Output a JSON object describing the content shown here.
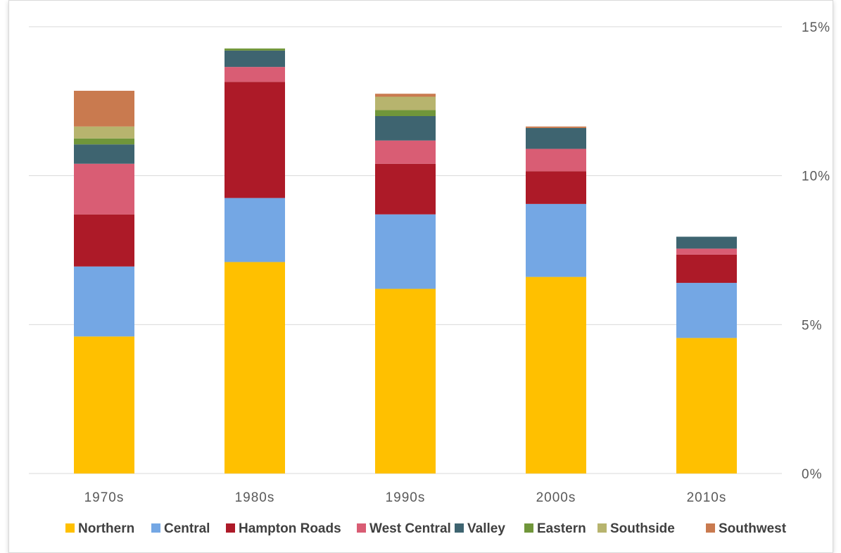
{
  "chart_data": {
    "type": "bar",
    "stacked": true,
    "title": "",
    "xlabel": "",
    "ylabel": "",
    "ylim": [
      0,
      15
    ],
    "y_axis_side": "right",
    "y_tick_labels": [
      "0%",
      "5%",
      "10%",
      "15%"
    ],
    "y_ticks": [
      0,
      5,
      10,
      15
    ],
    "grid": true,
    "legend_position": "bottom",
    "categories": [
      "1970s",
      "1980s",
      "1990s",
      "2000s",
      "2010s"
    ],
    "series": [
      {
        "name": "Northern",
        "color": "#ffc000",
        "values": [
          4.6,
          7.1,
          6.2,
          6.6,
          4.55
        ]
      },
      {
        "name": "Central",
        "color": "#74a7e4",
        "values": [
          2.35,
          2.15,
          2.5,
          2.45,
          1.85
        ]
      },
      {
        "name": "Hampton Roads",
        "color": "#ad1a28",
        "values": [
          1.75,
          3.9,
          1.7,
          1.1,
          0.95
        ]
      },
      {
        "name": "West Central",
        "color": "#d95d74",
        "values": [
          1.7,
          0.5,
          0.78,
          0.75,
          0.2
        ]
      },
      {
        "name": "Valley",
        "color": "#3e6470",
        "values": [
          0.65,
          0.55,
          0.82,
          0.7,
          0.4
        ]
      },
      {
        "name": "Eastern",
        "color": "#70963a",
        "values": [
          0.2,
          0.07,
          0.2,
          0.0,
          0.0
        ]
      },
      {
        "name": "Southside",
        "color": "#b7b46e",
        "values": [
          0.4,
          0.0,
          0.45,
          0.0,
          0.0
        ]
      },
      {
        "name": "Southwest",
        "color": "#c97a4f",
        "values": [
          1.2,
          0.0,
          0.1,
          0.05,
          0.0
        ]
      }
    ]
  },
  "colors": {
    "grid": "#d9d9d9",
    "tick_text": "#595959",
    "legend_text": "#404040"
  }
}
